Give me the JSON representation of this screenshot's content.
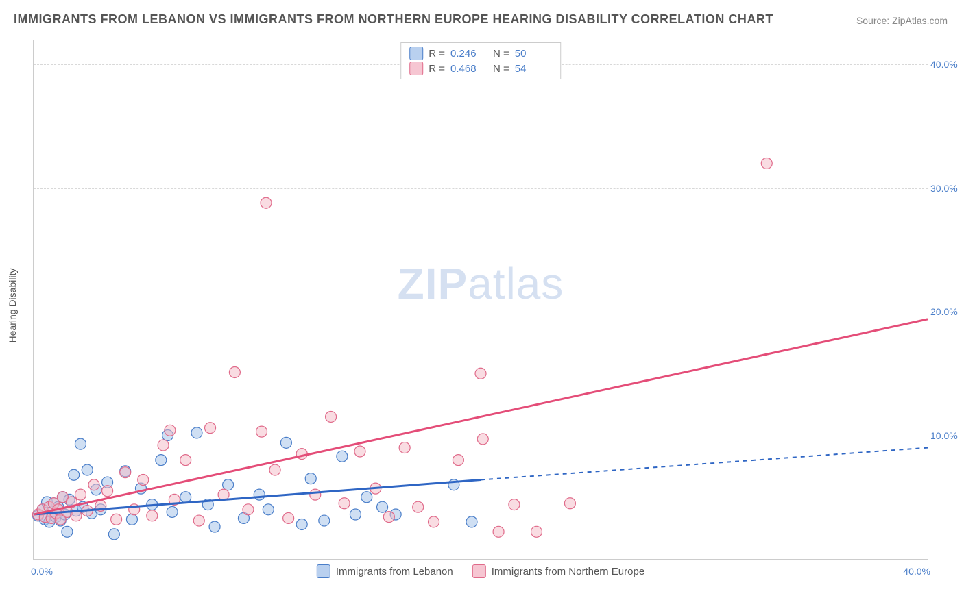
{
  "title": "IMMIGRANTS FROM LEBANON VS IMMIGRANTS FROM NORTHERN EUROPE HEARING DISABILITY CORRELATION CHART",
  "source": "Source: ZipAtlas.com",
  "ylabel": "Hearing Disability",
  "watermark_a": "ZIP",
  "watermark_b": "atlas",
  "chart": {
    "type": "scatter",
    "xlim": [
      0,
      40
    ],
    "ylim": [
      0,
      42
    ],
    "yticks": [
      10,
      20,
      30,
      40
    ],
    "ytick_labels": [
      "10.0%",
      "20.0%",
      "30.0%",
      "40.0%"
    ],
    "xtick_left": "0.0%",
    "xtick_right": "40.0%",
    "grid_color": "#d8d8d8",
    "background": "#ffffff",
    "series": [
      {
        "name": "Immigrants from Lebanon",
        "color_fill": "#a7c4ea",
        "color_stroke": "#4a7ec9",
        "swatch_fill": "#b9d0ef",
        "swatch_stroke": "#4a7ec9",
        "marker_radius": 8,
        "fill_opacity": 0.55,
        "R": "0.246",
        "N": "50",
        "trend": {
          "x1": 0,
          "y1": 3.6,
          "x2": 20,
          "y2": 6.4,
          "x2_ext": 40,
          "y2_ext": 9.0,
          "color": "#2f66c4",
          "width": 3,
          "dash_ext": "6,6"
        },
        "points": [
          [
            0.2,
            3.5
          ],
          [
            0.4,
            4.0
          ],
          [
            0.5,
            3.2
          ],
          [
            0.6,
            4.6
          ],
          [
            0.7,
            3.0
          ],
          [
            0.8,
            3.8
          ],
          [
            0.9,
            4.5
          ],
          [
            1.0,
            3.4
          ],
          [
            1.1,
            4.2
          ],
          [
            1.2,
            3.1
          ],
          [
            1.3,
            5.0
          ],
          [
            1.4,
            3.6
          ],
          [
            1.5,
            2.2
          ],
          [
            1.6,
            4.8
          ],
          [
            1.8,
            6.8
          ],
          [
            1.9,
            3.9
          ],
          [
            2.1,
            9.3
          ],
          [
            2.2,
            4.2
          ],
          [
            2.4,
            7.2
          ],
          [
            2.6,
            3.7
          ],
          [
            2.8,
            5.6
          ],
          [
            3.0,
            4.0
          ],
          [
            3.3,
            6.2
          ],
          [
            3.6,
            2.0
          ],
          [
            4.1,
            7.1
          ],
          [
            4.4,
            3.2
          ],
          [
            4.8,
            5.7
          ],
          [
            5.3,
            4.4
          ],
          [
            5.7,
            8.0
          ],
          [
            6.0,
            10.0
          ],
          [
            6.2,
            3.8
          ],
          [
            6.8,
            5.0
          ],
          [
            7.3,
            10.2
          ],
          [
            7.8,
            4.4
          ],
          [
            8.1,
            2.6
          ],
          [
            8.7,
            6.0
          ],
          [
            9.4,
            3.3
          ],
          [
            10.1,
            5.2
          ],
          [
            10.5,
            4.0
          ],
          [
            11.3,
            9.4
          ],
          [
            12.0,
            2.8
          ],
          [
            12.4,
            6.5
          ],
          [
            13.0,
            3.1
          ],
          [
            13.8,
            8.3
          ],
          [
            14.4,
            3.6
          ],
          [
            14.9,
            5.0
          ],
          [
            15.6,
            4.2
          ],
          [
            16.2,
            3.6
          ],
          [
            18.8,
            6.0
          ],
          [
            19.6,
            3.0
          ]
        ]
      },
      {
        "name": "Immigrants from Northern Europe",
        "color_fill": "#f3b9c6",
        "color_stroke": "#e06a8a",
        "swatch_fill": "#f6c6d2",
        "swatch_stroke": "#e06a8a",
        "marker_radius": 8,
        "fill_opacity": 0.5,
        "R": "0.468",
        "N": "54",
        "trend": {
          "x1": 0,
          "y1": 3.6,
          "x2": 40,
          "y2": 19.4,
          "color": "#e44d78",
          "width": 3
        },
        "points": [
          [
            0.2,
            3.6
          ],
          [
            0.4,
            4.0
          ],
          [
            0.5,
            3.4
          ],
          [
            0.7,
            4.2
          ],
          [
            0.8,
            3.3
          ],
          [
            0.9,
            4.5
          ],
          [
            1.0,
            3.7
          ],
          [
            1.1,
            4.0
          ],
          [
            1.2,
            3.2
          ],
          [
            1.3,
            5.0
          ],
          [
            1.5,
            3.8
          ],
          [
            1.7,
            4.6
          ],
          [
            1.9,
            3.5
          ],
          [
            2.1,
            5.2
          ],
          [
            2.4,
            3.9
          ],
          [
            2.7,
            6.0
          ],
          [
            3.0,
            4.3
          ],
          [
            3.3,
            5.5
          ],
          [
            3.7,
            3.2
          ],
          [
            4.1,
            7.0
          ],
          [
            4.5,
            4.0
          ],
          [
            4.9,
            6.4
          ],
          [
            5.3,
            3.5
          ],
          [
            5.8,
            9.2
          ],
          [
            6.3,
            4.8
          ],
          [
            6.8,
            8.0
          ],
          [
            7.4,
            3.1
          ],
          [
            7.9,
            10.6
          ],
          [
            8.5,
            5.2
          ],
          [
            9.0,
            15.1
          ],
          [
            9.6,
            4.0
          ],
          [
            10.2,
            10.3
          ],
          [
            10.4,
            28.8
          ],
          [
            10.8,
            7.2
          ],
          [
            11.4,
            3.3
          ],
          [
            12.0,
            8.5
          ],
          [
            12.6,
            5.2
          ],
          [
            13.3,
            11.5
          ],
          [
            13.9,
            4.5
          ],
          [
            14.6,
            8.7
          ],
          [
            15.3,
            5.7
          ],
          [
            15.9,
            3.4
          ],
          [
            16.6,
            9.0
          ],
          [
            17.2,
            4.2
          ],
          [
            17.9,
            3.0
          ],
          [
            19.0,
            8.0
          ],
          [
            20.0,
            15.0
          ],
          [
            20.1,
            9.7
          ],
          [
            20.8,
            2.2
          ],
          [
            21.5,
            4.4
          ],
          [
            24.0,
            4.5
          ],
          [
            22.5,
            2.2
          ],
          [
            32.8,
            32.0
          ],
          [
            6.1,
            10.4
          ]
        ]
      }
    ]
  },
  "legend_top": {
    "r_label": "R =",
    "n_label": "N ="
  }
}
